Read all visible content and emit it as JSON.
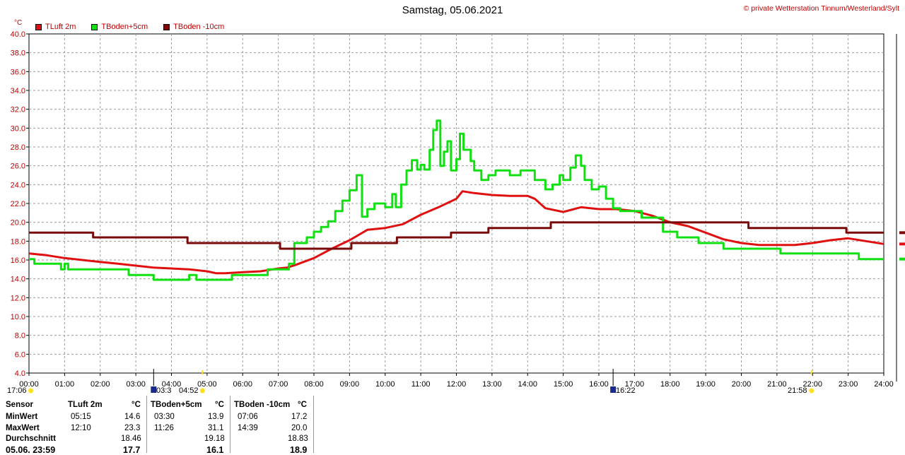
{
  "header": {
    "title": "Samstag, 05.06.2021",
    "copyright": "© private Wetterstation Tinnum/Westerland/Sylt",
    "unit": "°C"
  },
  "colors": {
    "tluft": "#e01010",
    "tboden5": "#10e010",
    "tboden10": "#7a0a0a"
  },
  "legend": [
    {
      "label": "TLuft 2m",
      "color": "#e01010"
    },
    {
      "label": "TBoden+5cm",
      "color": "#10e010"
    },
    {
      "label": "TBoden -10cm",
      "color": "#7a0a0a"
    }
  ],
  "sun": {
    "sunrise_prev": "17:06",
    "sunrise": "04:52",
    "sunset": "21:58",
    "moon_a": "03:3",
    "moon_b": "16:22"
  },
  "chart_data": {
    "type": "line",
    "title": "Samstag, 05.06.2021",
    "ylabel": "°C",
    "xlabel": "",
    "xlim": [
      0,
      24
    ],
    "ylim": [
      4.0,
      40.0
    ],
    "grid": true,
    "legend_position": "top-left",
    "x_ticks": [
      "00:00",
      "01:00",
      "02:00",
      "03:00",
      "04:00",
      "05:00",
      "06:00",
      "07:00",
      "08:00",
      "09:00",
      "10:00",
      "11:00",
      "12:00",
      "13:00",
      "14:00",
      "15:00",
      "16:00",
      "17:00",
      "18:00",
      "19:00",
      "20:00",
      "21:00",
      "22:00",
      "23:00",
      "24:00"
    ],
    "y_ticks": [
      "4.0",
      "6.0",
      "8.0",
      "10.0",
      "12.0",
      "14.0",
      "16.0",
      "18.0",
      "20.0",
      "22.0",
      "24.0",
      "26.0",
      "28.0",
      "30.0",
      "32.0",
      "34.0",
      "36.0",
      "38.0",
      "40.0"
    ],
    "series": [
      {
        "name": "TLuft 2m",
        "color": "#e01010",
        "step": false,
        "points": [
          [
            0,
            16.7
          ],
          [
            0.5,
            16.5
          ],
          [
            1,
            16.2
          ],
          [
            1.5,
            16.0
          ],
          [
            2,
            15.8
          ],
          [
            2.5,
            15.6
          ],
          [
            3,
            15.4
          ],
          [
            3.5,
            15.2
          ],
          [
            4,
            15.1
          ],
          [
            4.5,
            15.0
          ],
          [
            5,
            14.8
          ],
          [
            5.25,
            14.6
          ],
          [
            5.5,
            14.6
          ],
          [
            6,
            14.7
          ],
          [
            6.5,
            14.8
          ],
          [
            7,
            15.1
          ],
          [
            7.25,
            15.2
          ],
          [
            7.5,
            15.5
          ],
          [
            8,
            16.2
          ],
          [
            8.5,
            17.2
          ],
          [
            9,
            18.1
          ],
          [
            9.5,
            19.2
          ],
          [
            10,
            19.4
          ],
          [
            10.5,
            19.8
          ],
          [
            11,
            20.8
          ],
          [
            11.5,
            21.6
          ],
          [
            12,
            22.5
          ],
          [
            12.17,
            23.3
          ],
          [
            12.5,
            23.1
          ],
          [
            13,
            22.9
          ],
          [
            13.5,
            22.8
          ],
          [
            14,
            22.8
          ],
          [
            14.2,
            22.5
          ],
          [
            14.5,
            21.5
          ],
          [
            15,
            21.1
          ],
          [
            15.5,
            21.6
          ],
          [
            16,
            21.4
          ],
          [
            16.5,
            21.4
          ],
          [
            17,
            21.2
          ],
          [
            17.5,
            20.7
          ],
          [
            18,
            20.0
          ],
          [
            18.5,
            19.6
          ],
          [
            19,
            18.9
          ],
          [
            19.5,
            18.2
          ],
          [
            20,
            17.8
          ],
          [
            20.5,
            17.6
          ],
          [
            21,
            17.6
          ],
          [
            21.5,
            17.6
          ],
          [
            22,
            17.8
          ],
          [
            22.5,
            18.1
          ],
          [
            23,
            18.3
          ],
          [
            23.5,
            18.0
          ],
          [
            24,
            17.7
          ]
        ]
      },
      {
        "name": "TBoden+5cm",
        "color": "#10e010",
        "step": true,
        "points": [
          [
            0,
            16.1
          ],
          [
            0.15,
            15.6
          ],
          [
            0.9,
            15.0
          ],
          [
            1.0,
            15.6
          ],
          [
            1.1,
            15.0
          ],
          [
            2.8,
            14.4
          ],
          [
            3.5,
            13.9
          ],
          [
            4.5,
            14.4
          ],
          [
            4.7,
            13.9
          ],
          [
            5.7,
            14.4
          ],
          [
            6.7,
            15.0
          ],
          [
            7.0,
            15.0
          ],
          [
            7.1,
            15.0
          ],
          [
            7.3,
            15.6
          ],
          [
            7.45,
            17.8
          ],
          [
            7.6,
            17.8
          ],
          [
            7.8,
            18.4
          ],
          [
            8.0,
            19.0
          ],
          [
            8.2,
            19.5
          ],
          [
            8.4,
            20.1
          ],
          [
            8.6,
            21.2
          ],
          [
            8.8,
            22.3
          ],
          [
            9.0,
            23.4
          ],
          [
            9.2,
            25.0
          ],
          [
            9.35,
            20.6
          ],
          [
            9.5,
            21.4
          ],
          [
            9.7,
            22.0
          ],
          [
            10.0,
            21.6
          ],
          [
            10.2,
            23.0
          ],
          [
            10.3,
            21.6
          ],
          [
            10.45,
            24.0
          ],
          [
            10.6,
            25.5
          ],
          [
            10.75,
            26.6
          ],
          [
            10.9,
            25.6
          ],
          [
            11.0,
            26.1
          ],
          [
            11.1,
            25.6
          ],
          [
            11.25,
            27.7
          ],
          [
            11.35,
            29.8
          ],
          [
            11.45,
            30.8
          ],
          [
            11.55,
            26.0
          ],
          [
            11.65,
            27.5
          ],
          [
            11.75,
            28.6
          ],
          [
            11.85,
            25.5
          ],
          [
            12.0,
            26.7
          ],
          [
            12.1,
            29.4
          ],
          [
            12.2,
            27.7
          ],
          [
            12.4,
            26.5
          ],
          [
            12.5,
            25.5
          ],
          [
            12.7,
            24.5
          ],
          [
            12.9,
            25.0
          ],
          [
            13.1,
            25.5
          ],
          [
            13.5,
            25.0
          ],
          [
            13.8,
            25.5
          ],
          [
            14.2,
            24.5
          ],
          [
            14.5,
            23.5
          ],
          [
            14.7,
            24.0
          ],
          [
            14.9,
            25.0
          ],
          [
            15.0,
            24.5
          ],
          [
            15.2,
            25.8
          ],
          [
            15.35,
            27.1
          ],
          [
            15.5,
            26.0
          ],
          [
            15.6,
            24.5
          ],
          [
            15.8,
            23.5
          ],
          [
            16.0,
            23.8
          ],
          [
            16.2,
            22.5
          ],
          [
            16.4,
            21.5
          ],
          [
            16.6,
            21.2
          ],
          [
            17.2,
            20.5
          ],
          [
            17.8,
            19.0
          ],
          [
            18.2,
            18.4
          ],
          [
            18.8,
            17.8
          ],
          [
            19.5,
            17.2
          ],
          [
            20.5,
            17.2
          ],
          [
            21.1,
            16.7
          ],
          [
            22.8,
            16.7
          ],
          [
            23.3,
            16.1
          ],
          [
            24,
            16.1
          ]
        ]
      },
      {
        "name": "TBoden -10cm",
        "color": "#7a0a0a",
        "step": true,
        "points": [
          [
            0,
            18.9
          ],
          [
            1.8,
            18.4
          ],
          [
            4.45,
            17.8
          ],
          [
            7.05,
            17.2
          ],
          [
            8.05,
            17.2
          ],
          [
            9.05,
            17.8
          ],
          [
            10.33,
            18.4
          ],
          [
            11.85,
            18.9
          ],
          [
            12.9,
            19.4
          ],
          [
            14.65,
            20.0
          ],
          [
            16.0,
            20.0
          ],
          [
            20.2,
            19.4
          ],
          [
            22.95,
            18.9
          ],
          [
            24,
            18.9
          ]
        ]
      }
    ],
    "stats_table": {
      "headers": [
        "Sensor",
        "TLuft 2m",
        "°C",
        "TBoden+5cm",
        "°C",
        "TBoden -10cm",
        "°C"
      ],
      "rows": [
        {
          "label": "MinWert",
          "cells": [
            "05:15",
            "14.6",
            "03:30",
            "13.9",
            "07:06",
            "17.2"
          ]
        },
        {
          "label": "MaxWert",
          "cells": [
            "12:10",
            "23.3",
            "11:26",
            "31.1",
            "14:39",
            "20.0"
          ]
        },
        {
          "label": "Durchschnitt",
          "cells": [
            "",
            "18.46",
            "",
            "19.18",
            "",
            "18.83"
          ]
        },
        {
          "label": "05.06. 23:59",
          "cells": [
            "",
            "17.7",
            "",
            "16.1",
            "",
            "18.9"
          ]
        }
      ]
    }
  }
}
